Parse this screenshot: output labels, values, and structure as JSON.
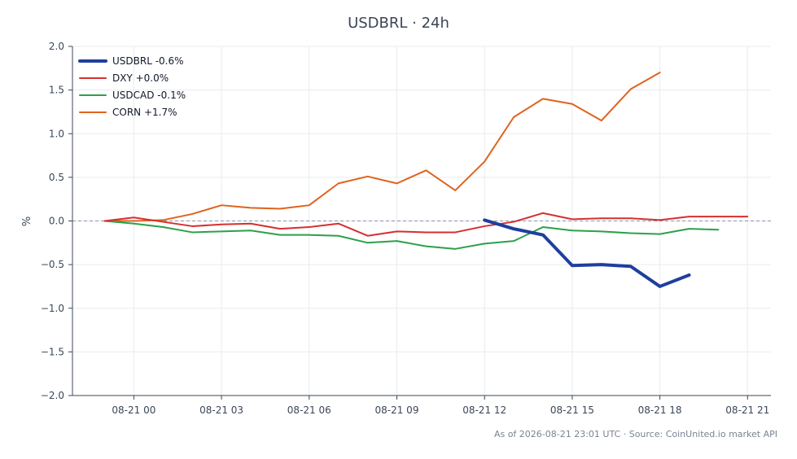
{
  "chart_data": {
    "type": "line",
    "title": "USDBRL · 24h",
    "xlabel": "",
    "ylabel": "%",
    "x_tick_labels": [
      "08-21 00",
      "08-21 03",
      "08-21 06",
      "08-21 09",
      "08-21 12",
      "08-21 15",
      "08-21 18",
      "08-21 21"
    ],
    "x_tick_hours": [
      0,
      3,
      6,
      9,
      12,
      15,
      18,
      21
    ],
    "x_unit": "hour",
    "xlim": [
      -2.1,
      21.8
    ],
    "ylim": [
      -2.0,
      2.0
    ],
    "y_ticks": [
      -2.0,
      -1.5,
      -1.0,
      -0.5,
      0.0,
      0.5,
      1.0,
      1.5,
      2.0
    ],
    "y_tick_labels": [
      "−2.0",
      "−1.5",
      "−1.0",
      "−0.5",
      "0.0",
      "0.5",
      "1.0",
      "1.5",
      "2.0"
    ],
    "grid": true,
    "zero_line": true,
    "legend_position": "top-left",
    "series": [
      {
        "name": "USDBRL -0.6%",
        "color": "#1f3f9e",
        "emphasis": "thick",
        "x": [
          12,
          13,
          14,
          15,
          16,
          17,
          18,
          19
        ],
        "values": [
          0.01,
          -0.09,
          -0.16,
          -0.51,
          -0.5,
          -0.52,
          -0.75,
          -0.62
        ]
      },
      {
        "name": "DXY +0.0%",
        "color": "#d62f2f",
        "emphasis": "normal",
        "x": [
          -1,
          0,
          1,
          2,
          3,
          4,
          5,
          6,
          7,
          8,
          9,
          10,
          11,
          12,
          13,
          14,
          15,
          16,
          17,
          18,
          19,
          20,
          21
        ],
        "values": [
          0.0,
          0.04,
          -0.01,
          -0.06,
          -0.04,
          -0.03,
          -0.09,
          -0.07,
          -0.03,
          -0.17,
          -0.12,
          -0.13,
          -0.13,
          -0.06,
          -0.01,
          0.09,
          0.02,
          0.03,
          0.03,
          0.01,
          0.05,
          0.05,
          0.05
        ]
      },
      {
        "name": "USDCAD -0.1%",
        "color": "#2ca04a",
        "emphasis": "normal",
        "x": [
          -1,
          0,
          1,
          2,
          3,
          4,
          5,
          6,
          7,
          8,
          9,
          10,
          11,
          12,
          13,
          14,
          15,
          16,
          17,
          18,
          19,
          20
        ],
        "values": [
          0.0,
          -0.03,
          -0.07,
          -0.13,
          -0.12,
          -0.11,
          -0.16,
          -0.16,
          -0.17,
          -0.25,
          -0.23,
          -0.29,
          -0.32,
          -0.26,
          -0.23,
          -0.07,
          -0.11,
          -0.12,
          -0.14,
          -0.15,
          -0.09,
          -0.1
        ]
      },
      {
        "name": "CORN +1.7%",
        "color": "#e0621d",
        "emphasis": "normal",
        "x": [
          -1,
          0,
          1,
          2,
          3,
          4,
          5,
          6,
          7,
          8,
          9,
          10,
          11,
          12,
          13,
          14,
          15,
          16,
          17,
          18
        ],
        "values": [
          0.0,
          0.0,
          0.01,
          0.08,
          0.18,
          0.15,
          0.14,
          0.18,
          0.43,
          0.51,
          0.43,
          0.58,
          0.35,
          0.68,
          1.19,
          1.4,
          1.34,
          1.15,
          1.51,
          1.7
        ]
      }
    ]
  },
  "footer": "As of 2026-08-21 23:01 UTC · Source: CoinUnited.io market API"
}
